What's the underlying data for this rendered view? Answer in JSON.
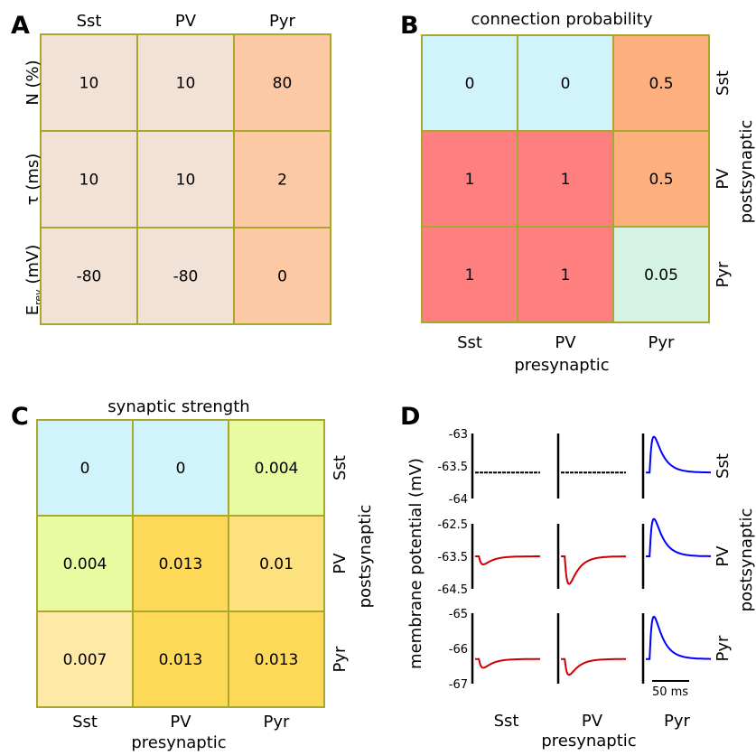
{
  "panels": {
    "A": {
      "letter": "A"
    },
    "B": {
      "letter": "B",
      "title": "connection probability",
      "xlabel": "presynaptic",
      "ylabel": "postsynaptic"
    },
    "C": {
      "letter": "C",
      "title": "synaptic strength",
      "xlabel": "presynaptic",
      "ylabel": "postsynaptic"
    },
    "D": {
      "letter": "D",
      "xlabel": "presynaptic",
      "ylabel": "postsynaptic",
      "yaxis_label": "membrane potential (mV)",
      "scalebar_label": "50 ms"
    }
  },
  "chart_data": [
    {
      "id": "A",
      "type": "table",
      "columns": [
        "Sst",
        "PV",
        "Pyr"
      ],
      "rows": [
        {
          "label": "N (%)",
          "values": [
            "10",
            "10",
            "80"
          ]
        },
        {
          "label": "τ (ms)",
          "values": [
            "10",
            "10",
            "2"
          ]
        },
        {
          "label_main": "E",
          "label_sub": "rev",
          "label_rest": " (mV)",
          "values": [
            "-80",
            "-80",
            "0"
          ]
        }
      ],
      "cell_colors": [
        [
          "#f2e2d6",
          "#f2e2d6",
          "#fcc9a4"
        ],
        [
          "#f2e2d6",
          "#f2e2d6",
          "#fcc9a4"
        ],
        [
          "#f2e2d6",
          "#f2e2d6",
          "#fcc9a4"
        ]
      ]
    },
    {
      "id": "B",
      "type": "heatmap",
      "title": "connection probability",
      "x_categories": [
        "Sst",
        "PV",
        "Pyr"
      ],
      "y_categories": [
        "Sst",
        "PV",
        "Pyr"
      ],
      "xlabel": "presynaptic",
      "ylabel": "postsynaptic",
      "values": [
        [
          "0",
          "0",
          "0.5"
        ],
        [
          "1",
          "1",
          "0.5"
        ],
        [
          "1",
          "1",
          "0.05"
        ]
      ],
      "cell_colors": [
        [
          "#d1f3fb",
          "#d1f3fb",
          "#fdb07e"
        ],
        [
          "#fd7f7f",
          "#fd7f7f",
          "#fdb07e"
        ],
        [
          "#fd7f7f",
          "#fd7f7f",
          "#d5f3e5"
        ]
      ]
    },
    {
      "id": "C",
      "type": "heatmap",
      "title": "synaptic strength",
      "x_categories": [
        "Sst",
        "PV",
        "Pyr"
      ],
      "y_categories": [
        "Sst",
        "PV",
        "Pyr"
      ],
      "xlabel": "presynaptic",
      "ylabel": "postsynaptic",
      "values": [
        [
          "0",
          "0",
          "0.004"
        ],
        [
          "0.004",
          "0.013",
          "0.01"
        ],
        [
          "0.007",
          "0.013",
          "0.013"
        ]
      ],
      "cell_colors": [
        [
          "#d1f3fb",
          "#d1f3fb",
          "#e9fba0"
        ],
        [
          "#e9fba0",
          "#fed957",
          "#fee17f"
        ],
        [
          "#feeaa6",
          "#fed957",
          "#fed957"
        ]
      ]
    },
    {
      "id": "D",
      "type": "line",
      "x_categories": [
        "Sst",
        "PV",
        "Pyr"
      ],
      "y_categories": [
        "Sst",
        "PV",
        "Pyr"
      ],
      "xlabel": "presynaptic",
      "ylabel": "postsynaptic",
      "yaxis_label": "membrane potential (mV)",
      "scalebar_ms": 50,
      "rows": [
        {
          "post": "Sst",
          "ylim": [
            -64,
            -63
          ],
          "ticks": [
            "-63",
            "-63.5",
            "-64"
          ],
          "tick_values": [
            -63,
            -63.5,
            -64
          ],
          "baseline": -63.6
        },
        {
          "post": "PV",
          "ylim": [
            -64.5,
            -62.5
          ],
          "ticks": [
            "-62.5",
            "-63.5",
            "-64.5"
          ],
          "tick_values": [
            -62.5,
            -63.5,
            -64.5
          ],
          "baseline": -63.5
        },
        {
          "post": "Pyr",
          "ylim": [
            -67,
            -65
          ],
          "ticks": [
            "-65",
            "-66",
            "-67"
          ],
          "tick_values": [
            -65,
            -66,
            -67
          ],
          "baseline": -66.3
        }
      ],
      "traces": [
        [
          {
            "pre": "Sst",
            "color": "#000000",
            "amplitude": 0
          },
          {
            "pre": "PV",
            "color": "#000000",
            "amplitude": 0
          },
          {
            "pre": "Pyr",
            "color": "#0000ff",
            "amplitude": 0.55
          }
        ],
        [
          {
            "pre": "Sst",
            "color": "#cc0000",
            "amplitude": -0.25
          },
          {
            "pre": "PV",
            "color": "#cc0000",
            "amplitude": -0.85
          },
          {
            "pre": "Pyr",
            "color": "#0000ff",
            "amplitude": 1.15
          }
        ],
        [
          {
            "pre": "Sst",
            "color": "#cc0000",
            "amplitude": -0.25
          },
          {
            "pre": "PV",
            "color": "#cc0000",
            "amplitude": -0.45
          },
          {
            "pre": "Pyr",
            "color": "#0000ff",
            "amplitude": 1.2
          }
        ]
      ]
    }
  ]
}
